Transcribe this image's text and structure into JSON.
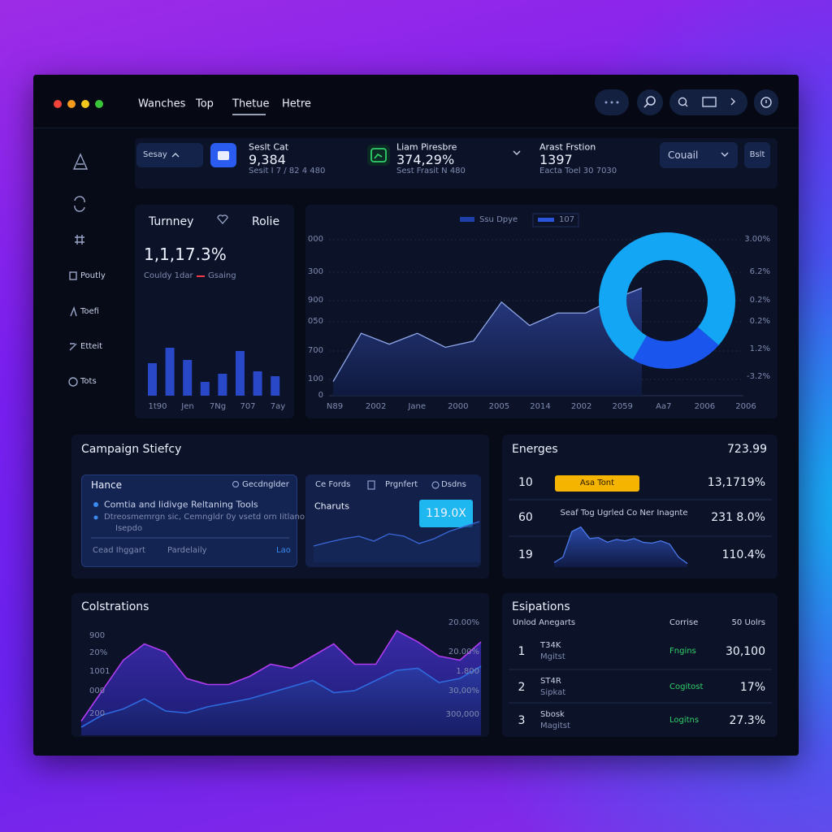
{
  "nav": [
    "Wanches",
    "Top",
    "Thetue",
    "Hetre"
  ],
  "sidebar": [
    "Poutly",
    "Toefi",
    "Etteit",
    "Tots"
  ],
  "stats": {
    "filter": "Sesay",
    "cards": [
      {
        "label": "Seslt Cat",
        "value": "9,384",
        "sub": "Sesit I 7 / 82 4 480"
      },
      {
        "label": "Liam Piresbre",
        "value": "374,29%",
        "sub": "Sest Frasit N 480"
      },
      {
        "label": "Arast Frstion",
        "value": "1397",
        "sub": "Eacta Toel 30 7030"
      }
    ],
    "select": "Couail",
    "button": "Bslt"
  },
  "overview": {
    "title": "Turnney",
    "action": "Rolie",
    "value": "1,1,17.3%",
    "caption": "Couldy 1dar",
    "legend": "Gsaing",
    "bars": {
      "values": [
        40,
        59,
        44,
        17,
        27,
        55,
        30,
        24
      ],
      "ylim": [
        0,
        70
      ],
      "color": "#2848c8"
    },
    "x_labels": [
      "1t90",
      "Jen",
      "7Ng",
      "707",
      "7ay"
    ]
  },
  "main_chart": {
    "legend": [
      "Ssu Dpye",
      "107"
    ],
    "y_labels": [
      "000",
      "300",
      "900",
      "050",
      "700",
      "100",
      "0"
    ],
    "y2_labels": [
      "3.00%",
      "6.2%",
      "0.2%",
      "0.2%",
      "1.2%",
      "-3.2%"
    ],
    "x_labels": [
      "N89",
      "2002",
      "Jane",
      "2000",
      "2005",
      "2014",
      "2002",
      "2059",
      "Aa7",
      "2006",
      "2006"
    ],
    "area": {
      "values": [
        9,
        40,
        33,
        40,
        31,
        35,
        60,
        45,
        53,
        53,
        62,
        69
      ],
      "ylim": [
        0,
        100
      ],
      "color": "#8fa6e8"
    },
    "donut": {
      "values": [
        78,
        22
      ],
      "colors": [
        "#13a6f5",
        "#1a55ee"
      ]
    }
  },
  "campaign": {
    "title": "Campaign Stiefcy",
    "card": {
      "title": "Hance",
      "search": "Gecdnglder",
      "items": [
        "Comtia and Iidivge Reltaning Tools",
        "Dtreosmemrgn sic, Cemngldr 0y vsetd orn Iitlano",
        "Isepdo"
      ],
      "footer": [
        "Cead Ihggart",
        "Pardelaily",
        "Lao"
      ]
    },
    "chart_card": {
      "tabs": [
        "Ce Fords",
        "Prgnfert",
        "Dsdns"
      ],
      "title": "Charuts",
      "badge": "119.0X",
      "line": {
        "values": [
          30,
          38,
          45,
          50,
          40,
          55,
          50,
          35,
          45,
          60,
          70,
          80
        ],
        "ylim": [
          0,
          100
        ],
        "color": "#3a68d8"
      }
    }
  },
  "energes": {
    "title": "Energes",
    "total": "723.99",
    "rows": [
      {
        "label": "10",
        "tag": "Asa Tont",
        "value": "13,1719%"
      },
      {
        "label": "60",
        "note": "Seaf Tog Ugrled Co Ner Inagnte",
        "value": "231 8.0%"
      },
      {
        "label": "19",
        "value": "110.4%"
      }
    ],
    "area": {
      "values": [
        8,
        20,
        75,
        85,
        60,
        62,
        52,
        58,
        55,
        60,
        52,
        50,
        55,
        48,
        20,
        6
      ],
      "ylim": [
        0,
        100
      ],
      "color": "#4a78e8"
    }
  },
  "colstrations": {
    "title": "Colstrations",
    "y_labels": [
      "900",
      "20%",
      "1001",
      "000",
      "200"
    ],
    "y2_labels": [
      "20.00%",
      "20.00%",
      "1.800",
      "30,00%",
      "300,000"
    ],
    "series": [
      {
        "values": [
          10,
          40,
          70,
          86,
          78,
          52,
          46,
          46,
          54,
          66,
          62,
          74,
          86,
          66,
          66,
          99,
          88,
          74,
          70,
          88
        ],
        "color": "#b03cf0"
      },
      {
        "values": [
          4,
          16,
          22,
          32,
          20,
          18,
          24,
          28,
          32,
          38,
          44,
          50,
          38,
          40,
          50,
          60,
          62,
          48,
          52,
          64
        ],
        "color": "#2f6ae0"
      }
    ],
    "ylim": [
      0,
      100
    ]
  },
  "esipations": {
    "title": "Esipations",
    "headers": [
      "Unlod Anegarts",
      "Corrise",
      "50 Uolrs"
    ],
    "rows": [
      {
        "rank": "1",
        "name": [
          "T34K",
          "Mgitst"
        ],
        "status": "Fngins",
        "value": "30,100"
      },
      {
        "rank": "2",
        "name": [
          "ST4R",
          "Sipkat"
        ],
        "status": "Cogitost",
        "value": "17%"
      },
      {
        "rank": "3",
        "name": [
          "Sbosk",
          "Magitst"
        ],
        "status": "Logitns",
        "value": "27.3%"
      }
    ]
  }
}
